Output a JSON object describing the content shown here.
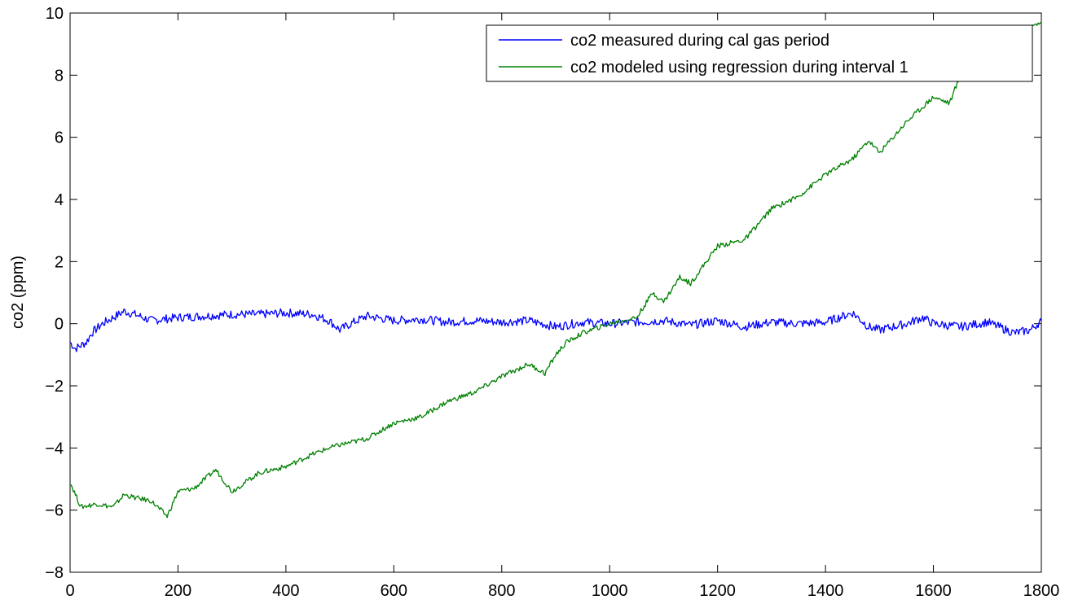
{
  "chart_data": {
    "type": "line",
    "title": "",
    "xlabel": "",
    "ylabel": "co2 (ppm)",
    "xlim": [
      0,
      1800
    ],
    "ylim": [
      -8,
      10
    ],
    "xticks": [
      0,
      200,
      400,
      600,
      800,
      1000,
      1200,
      1400,
      1600,
      1800
    ],
    "yticks": [
      -8,
      -6,
      -4,
      -2,
      0,
      2,
      4,
      6,
      8,
      10
    ],
    "xtick_labels": [
      "0",
      "200",
      "400",
      "600",
      "800",
      "1000",
      "1200",
      "1400",
      "1600",
      "1800"
    ],
    "ytick_labels": [
      "−8",
      "−6",
      "−4",
      "−2",
      "0",
      "2",
      "4",
      "6",
      "8",
      "10"
    ],
    "grid": false,
    "legend_position": "top-right",
    "series": [
      {
        "name": "co2 measured during cal gas period",
        "color": "#0000ff",
        "x": [
          0,
          10,
          20,
          30,
          40,
          60,
          80,
          100,
          120,
          150,
          200,
          250,
          300,
          350,
          400,
          450,
          480,
          500,
          520,
          550,
          600,
          650,
          700,
          750,
          800,
          850,
          900,
          950,
          1000,
          1050,
          1100,
          1150,
          1200,
          1250,
          1300,
          1350,
          1400,
          1450,
          1480,
          1500,
          1550,
          1580,
          1600,
          1650,
          1700,
          1750,
          1780,
          1800
        ],
        "y": [
          -0.6,
          -0.8,
          -0.7,
          -0.6,
          -0.3,
          0.0,
          0.2,
          0.4,
          0.3,
          0.1,
          0.2,
          0.25,
          0.3,
          0.3,
          0.35,
          0.3,
          0.1,
          -0.2,
          0.0,
          0.25,
          0.1,
          0.15,
          0.05,
          0.1,
          0.05,
          0.1,
          -0.1,
          0.05,
          0.0,
          0.05,
          0.1,
          -0.05,
          0.1,
          -0.1,
          0.05,
          0.0,
          0.05,
          0.35,
          -0.1,
          -0.2,
          0.0,
          0.2,
          0.0,
          -0.1,
          0.05,
          -0.3,
          -0.2,
          0.1
        ]
      },
      {
        "name": "co2 modeled using regression during interval 1",
        "color": "#008000",
        "x": [
          0,
          20,
          50,
          80,
          100,
          120,
          150,
          180,
          200,
          230,
          270,
          300,
          350,
          400,
          450,
          480,
          500,
          550,
          600,
          650,
          700,
          750,
          800,
          850,
          880,
          900,
          920,
          950,
          1000,
          1050,
          1080,
          1100,
          1130,
          1150,
          1200,
          1250,
          1300,
          1350,
          1400,
          1450,
          1480,
          1500,
          1550,
          1600,
          1630,
          1650,
          1700,
          1750,
          1800
        ],
        "y": [
          -5.1,
          -5.9,
          -5.8,
          -5.9,
          -5.5,
          -5.6,
          -5.7,
          -6.2,
          -5.4,
          -5.3,
          -4.7,
          -5.4,
          -4.8,
          -4.6,
          -4.2,
          -4.0,
          -3.9,
          -3.7,
          -3.2,
          -3.0,
          -2.5,
          -2.2,
          -1.7,
          -1.3,
          -1.6,
          -1.0,
          -0.6,
          -0.3,
          0.0,
          0.2,
          1.0,
          0.7,
          1.5,
          1.3,
          2.5,
          2.7,
          3.7,
          4.1,
          4.8,
          5.3,
          5.9,
          5.5,
          6.5,
          7.3,
          7.1,
          8.0,
          8.8,
          9.3,
          9.7
        ]
      }
    ]
  }
}
